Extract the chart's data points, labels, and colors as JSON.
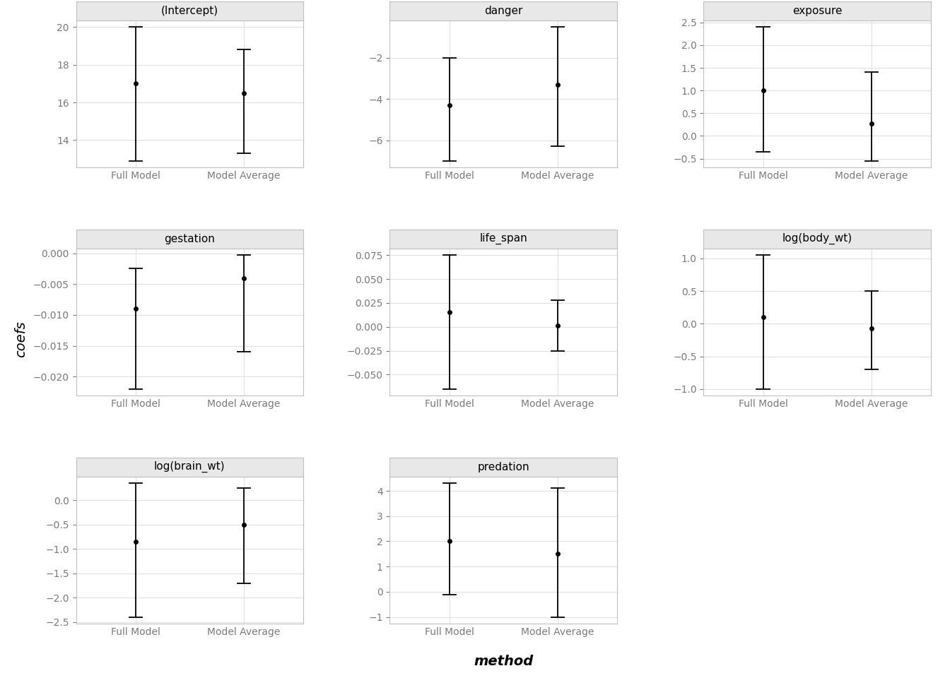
{
  "panels": [
    {
      "title": "(Intercept)",
      "full_model": {
        "estimate": 17.0,
        "lower": 12.9,
        "upper": 20.0
      },
      "model_avg": {
        "estimate": 16.5,
        "lower": 13.3,
        "upper": 18.8
      }
    },
    {
      "title": "danger",
      "full_model": {
        "estimate": -4.3,
        "lower": -7.0,
        "upper": -2.0
      },
      "model_avg": {
        "estimate": -3.3,
        "lower": -6.3,
        "upper": -0.5
      }
    },
    {
      "title": "exposure",
      "full_model": {
        "estimate": 1.0,
        "lower": -0.35,
        "upper": 2.4
      },
      "model_avg": {
        "estimate": 0.27,
        "lower": -0.55,
        "upper": 1.4
      }
    },
    {
      "title": "gestation",
      "full_model": {
        "estimate": -0.009,
        "lower": -0.022,
        "upper": -0.0025
      },
      "model_avg": {
        "estimate": -0.004,
        "lower": -0.016,
        "upper": -0.0003
      }
    },
    {
      "title": "life_span",
      "full_model": {
        "estimate": 0.015,
        "lower": -0.065,
        "upper": 0.075
      },
      "model_avg": {
        "estimate": 0.001,
        "lower": -0.025,
        "upper": 0.028
      }
    },
    {
      "title": "log(body_wt)",
      "full_model": {
        "estimate": 0.1,
        "lower": -1.0,
        "upper": 1.05
      },
      "model_avg": {
        "estimate": -0.07,
        "lower": -0.7,
        "upper": 0.5
      }
    },
    {
      "title": "log(brain_wt)",
      "full_model": {
        "estimate": -0.85,
        "lower": -2.4,
        "upper": 0.35
      },
      "model_avg": {
        "estimate": -0.5,
        "lower": -1.7,
        "upper": 0.25
      }
    },
    {
      "title": "predation",
      "full_model": {
        "estimate": 2.0,
        "lower": -0.1,
        "upper": 4.3
      },
      "model_avg": {
        "estimate": 1.5,
        "lower": -1.0,
        "upper": 4.1
      }
    }
  ],
  "x_labels": [
    "Full Model",
    "Model Average"
  ],
  "x_positions": [
    1,
    2
  ],
  "ylabel": "coefs",
  "xlabel": "method",
  "point_color": "#000000",
  "point_size": 5,
  "line_color": "#000000",
  "line_width": 1.3,
  "panel_bg": "#ffffff",
  "strip_bg": "#e8e8e8",
  "strip_border": "#c0c0c0",
  "grid_color": "#e0e0e0",
  "grid_linewidth": 0.8,
  "outer_border": "#c0c0c0",
  "tick_color": "#7a7a7a",
  "tick_fontsize": 10,
  "strip_fontsize": 11,
  "label_fontsize": 14,
  "layout": {
    "nrows": 3,
    "ncols": 3
  }
}
